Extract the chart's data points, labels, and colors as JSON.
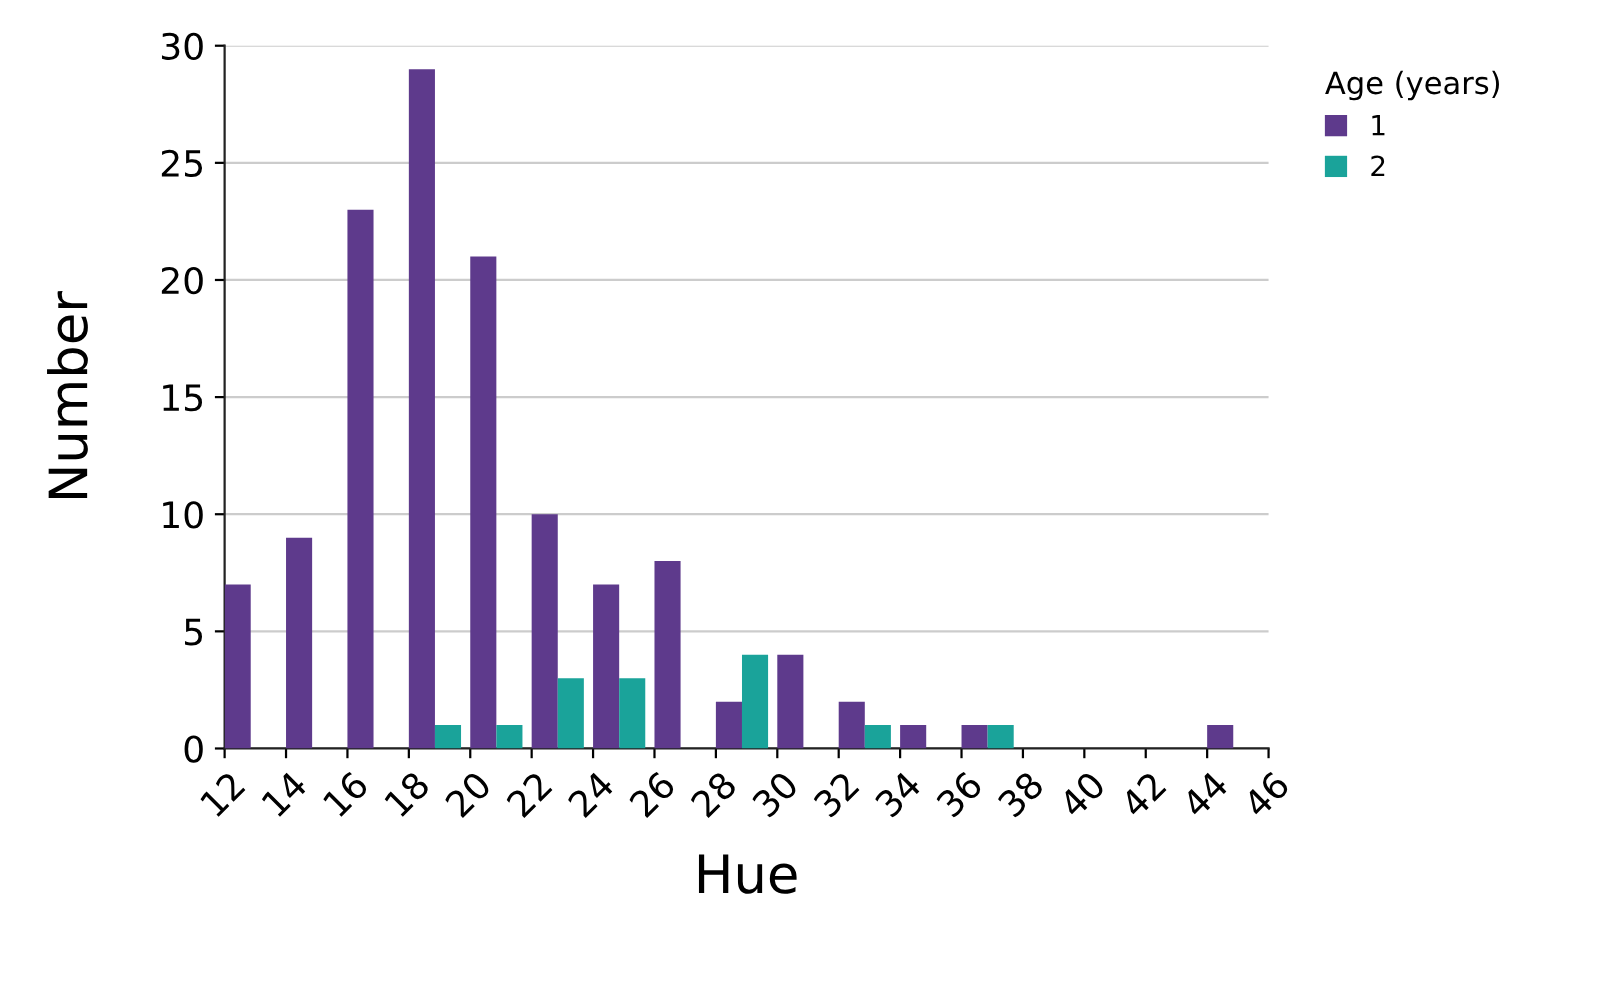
{
  "chart_data": {
    "type": "histogram",
    "xlabel": "Hue",
    "ylabel": "Number",
    "legend_title": "Age (years)",
    "bins": [
      12,
      14,
      16,
      18,
      20,
      22,
      24,
      26,
      28,
      30,
      32,
      34,
      36,
      38,
      40,
      42,
      44,
      46
    ],
    "series": [
      {
        "name": "1",
        "color": "#5e3a8c",
        "values": [
          7,
          9,
          23,
          29,
          21,
          10,
          7,
          8,
          2,
          4,
          2,
          1,
          1,
          0,
          0,
          0,
          1
        ]
      },
      {
        "name": "2",
        "color": "#1aa39a",
        "values": [
          0,
          0,
          0,
          1,
          1,
          3,
          3,
          0,
          4,
          0,
          1,
          0,
          1,
          0,
          0,
          0,
          0
        ]
      }
    ],
    "xlim": [
      12,
      46
    ],
    "xticks": [
      12,
      14,
      16,
      18,
      20,
      22,
      24,
      26,
      28,
      30,
      32,
      34,
      36,
      38,
      40,
      42,
      44,
      46
    ],
    "ylim": [
      0,
      30
    ],
    "yticks": [
      0,
      5,
      10,
      15,
      20,
      25,
      30
    ],
    "grid": "y",
    "legend": "right"
  }
}
